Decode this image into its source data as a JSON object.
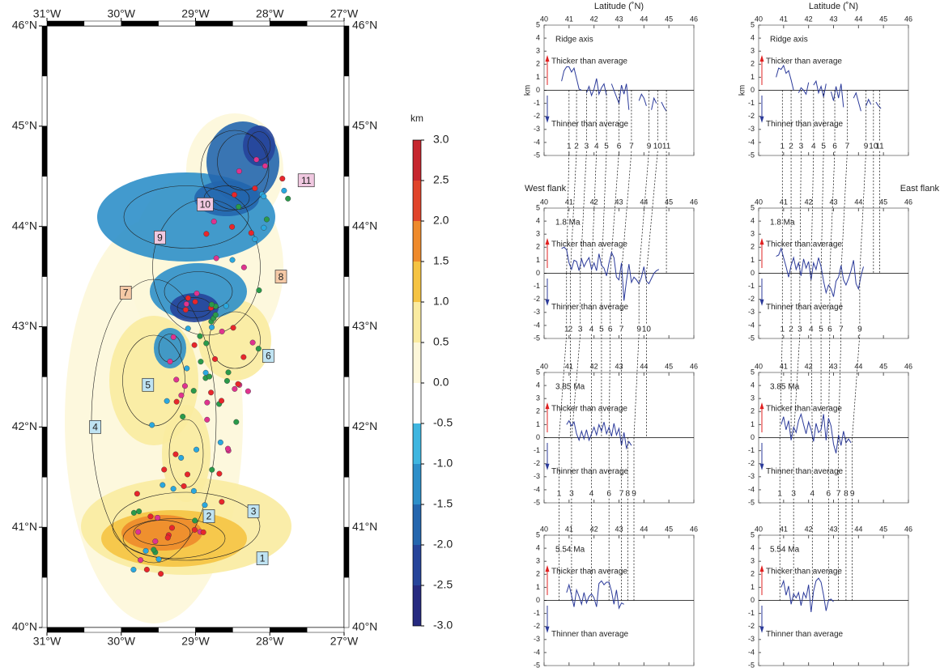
{
  "map": {
    "xlim": [
      -31,
      -27
    ],
    "ylim": [
      40,
      46
    ],
    "lon_ticks": [
      {
        "value": -31,
        "label": "31°W"
      },
      {
        "value": -30,
        "label": "30°W"
      },
      {
        "value": -29,
        "label": "29°W"
      },
      {
        "value": -28,
        "label": "28°W"
      },
      {
        "value": -27,
        "label": "27°W"
      }
    ],
    "lat_ticks": [
      {
        "value": 40,
        "label": "40°N"
      },
      {
        "value": 41,
        "label": "41°N"
      },
      {
        "value": 42,
        "label": "42°N"
      },
      {
        "value": 43,
        "label": "43°N"
      },
      {
        "value": 44,
        "label": "44°N"
      },
      {
        "value": 45,
        "label": "45°N"
      },
      {
        "value": 46,
        "label": "46°N"
      }
    ],
    "segments": [
      {
        "label": "1",
        "lon": -28.1,
        "lat": 40.69,
        "color": "#bfe3f2"
      },
      {
        "label": "2",
        "lon": -28.82,
        "lat": 41.11,
        "color": "#bfe3f2"
      },
      {
        "label": "3",
        "lon": -28.22,
        "lat": 41.16,
        "color": "#bfe3f2"
      },
      {
        "label": "4",
        "lon": -30.35,
        "lat": 42.0,
        "color": "#bfe3f2"
      },
      {
        "label": "5",
        "lon": -29.64,
        "lat": 42.42,
        "color": "#bfe3f2"
      },
      {
        "label": "6",
        "lon": -28.02,
        "lat": 42.71,
        "color": "#bfe3f2"
      },
      {
        "label": "7",
        "lon": -29.94,
        "lat": 43.34,
        "color": "#f5c9a6"
      },
      {
        "label": "8",
        "lon": -27.85,
        "lat": 43.5,
        "color": "#f5c9a6"
      },
      {
        "label": "9",
        "lon": -29.48,
        "lat": 43.89,
        "color": "#f0c8e0"
      },
      {
        "label": "10",
        "lon": -28.87,
        "lat": 44.22,
        "color": "#f0c8e0"
      },
      {
        "label": "11",
        "lon": -27.51,
        "lat": 44.46,
        "color": "#f0c8e0"
      }
    ]
  },
  "colorbar": {
    "title": "km",
    "lim": [
      -3,
      3
    ],
    "colors": [
      "#c6262e",
      "#e0442a",
      "#ee8a2b",
      "#f5c342",
      "#faeba0",
      "#fdf7d9",
      "#ffffff",
      "#3fb6e0",
      "#2d8fc9",
      "#2466ae",
      "#26449a",
      "#262a80"
    ],
    "ticks": [
      {
        "value": 3,
        "label": "3.0"
      },
      {
        "value": 2.5,
        "label": "2.5"
      },
      {
        "value": 2,
        "label": "2.0"
      },
      {
        "value": 1.5,
        "label": "1.5"
      },
      {
        "value": 1,
        "label": "1.0"
      },
      {
        "value": 0.5,
        "label": "0.5"
      },
      {
        "value": 0,
        "label": "0.0"
      },
      {
        "value": -0.5,
        "label": "-0.5"
      },
      {
        "value": -1,
        "label": "-1.0"
      },
      {
        "value": -1.5,
        "label": "-1.5"
      },
      {
        "value": -2,
        "label": "-2.0"
      },
      {
        "value": -2.5,
        "label": "-2.5"
      },
      {
        "value": -3,
        "label": "-3.0"
      }
    ]
  },
  "profiles": {
    "x_title": "Latitude (˚N)",
    "y_title": "km",
    "west": "West flank",
    "east": "East flank",
    "thicker": "Thicker than average",
    "thinner": "Thinner than average",
    "color": "#2b3a9a",
    "xlim": [
      40,
      46
    ],
    "ylim": [
      -5,
      5
    ],
    "xticks": [
      40,
      41,
      42,
      43,
      44,
      45,
      46
    ],
    "yticks": [
      5,
      4,
      3,
      2,
      1,
      0,
      -1,
      -2,
      -3,
      -4,
      -5
    ],
    "x": [
      40.7,
      40.8,
      40.9,
      41.0,
      41.1,
      41.2,
      41.3,
      41.4,
      41.5,
      41.6,
      41.7,
      41.8,
      41.9,
      42.0,
      42.1,
      42.2,
      42.3,
      42.4,
      42.5,
      42.6,
      42.7,
      42.8,
      42.9,
      43.0,
      43.1,
      43.2,
      43.3,
      43.4,
      43.5,
      43.6,
      43.7,
      43.8,
      43.9,
      44.0,
      44.1,
      44.2,
      44.3,
      44.4,
      44.5,
      44.6,
      44.7,
      44.8,
      44.9
    ],
    "panels": [
      {
        "label": "Ridge axis",
        "values": [
          0.7,
          1.5,
          1.8,
          1.8,
          1.4,
          1.7,
          0.9,
          0.1,
          0.0,
          null,
          -0.2,
          0.3,
          -0.4,
          0.1,
          0.9,
          -0.3,
          0.2,
          0.5,
          -0.4,
          null,
          0.5,
          0.0,
          -0.5,
          -1.0,
          0.4,
          -0.3,
          0.5,
          -1.5,
          null,
          null,
          null,
          -0.8,
          -0.3,
          -0.6,
          -1.2,
          null,
          -1.5,
          -0.6,
          -1.0,
          null,
          -0.9,
          -1.3,
          -1.6
        ],
        "segments": [
          {
            "label": "1",
            "lat": 41.0
          },
          {
            "label": "2",
            "lat": 41.3
          },
          {
            "label": "3",
            "lat": 41.7
          },
          {
            "label": "4",
            "lat": 42.1
          },
          {
            "label": "5",
            "lat": 42.5
          },
          {
            "label": "6",
            "lat": 43.0
          },
          {
            "label": "7",
            "lat": 43.5
          },
          {
            "label": "9",
            "lat": 44.2
          },
          {
            "label": "10",
            "lat": 44.55
          },
          {
            "label": "11",
            "lat": 44.9
          }
        ]
      },
      {
        "label": "Ridge axis",
        "values": [
          1.0,
          1.7,
          1.6,
          1.9,
          1.3,
          1.5,
          0.8,
          0.0,
          null,
          -0.2,
          0.2,
          0.0,
          -0.3,
          0.6,
          null,
          0.4,
          0.7,
          -0.2,
          0.3,
          -0.5,
          0.5,
          null,
          -0.1,
          -0.8,
          0.3,
          -0.6,
          0.5,
          -1.3,
          null,
          null,
          null,
          -0.6,
          -0.2,
          -0.9,
          -1.6,
          null,
          -1.2,
          -0.7,
          -1.1,
          null,
          -0.9,
          -1.2,
          -1.4
        ],
        "segments": [
          {
            "label": "1",
            "lat": 40.95
          },
          {
            "label": "2",
            "lat": 41.3
          },
          {
            "label": "3",
            "lat": 41.7
          },
          {
            "label": "4",
            "lat": 42.2
          },
          {
            "label": "5",
            "lat": 42.6
          },
          {
            "label": "6",
            "lat": 43.05
          },
          {
            "label": "7",
            "lat": 43.55
          },
          {
            "label": "9",
            "lat": 44.3
          },
          {
            "label": "10",
            "lat": 44.6
          },
          {
            "label": "11",
            "lat": 44.85
          }
        ]
      },
      {
        "label": "1.8 Ma",
        "values": [
          1.9,
          2.0,
          1.8,
          0.8,
          0.3,
          1.0,
          0.9,
          0.2,
          1.1,
          0.5,
          0.9,
          1.2,
          0.3,
          0.8,
          0.2,
          1.5,
          0.6,
          0.4,
          -0.2,
          0.8,
          1.6,
          1.2,
          -0.3,
          -0.5,
          0.8,
          -2.1,
          -0.6,
          0.7,
          -0.7,
          -0.3,
          -0.5,
          -0.8,
          -0.3,
          0.5,
          -0.6,
          -0.8,
          -0.4,
          0.0,
          0.2,
          0.3,
          null,
          null,
          null
        ],
        "segments": [
          {
            "label": "1",
            "lat": 40.9
          },
          {
            "label": "2",
            "lat": 41.05
          },
          {
            "label": "3",
            "lat": 41.45
          },
          {
            "label": "4",
            "lat": 41.9
          },
          {
            "label": "5",
            "lat": 42.3
          },
          {
            "label": "6",
            "lat": 42.65
          },
          {
            "label": "7",
            "lat": 43.1
          },
          {
            "label": "9",
            "lat": 43.8
          },
          {
            "label": "10",
            "lat": 44.1
          }
        ]
      },
      {
        "label": "1.8 Ma",
        "values": [
          1.3,
          1.4,
          1.9,
          1.2,
          0.5,
          -0.3,
          0.6,
          1.2,
          0.3,
          0.8,
          -0.2,
          1.1,
          0.4,
          0.9,
          -0.5,
          0.8,
          0.3,
          1.2,
          0.5,
          -0.6,
          -1.5,
          -0.9,
          -1.2,
          -1.8,
          -0.6,
          -0.3,
          0.6,
          -0.5,
          -0.9,
          -0.4,
          0.2,
          1.0,
          -0.8,
          -1.2,
          -0.2,
          0.5,
          null,
          null,
          null,
          null,
          null,
          null,
          null
        ],
        "segments": [
          {
            "label": "1",
            "lat": 40.95
          },
          {
            "label": "2",
            "lat": 41.3
          },
          {
            "label": "3",
            "lat": 41.65
          },
          {
            "label": "4",
            "lat": 42.1
          },
          {
            "label": "5",
            "lat": 42.5
          },
          {
            "label": "6",
            "lat": 42.85
          },
          {
            "label": "7",
            "lat": 43.3
          },
          {
            "label": "9",
            "lat": 44.05
          }
        ]
      },
      {
        "label": "3.85 Ma",
        "values": [
          null,
          null,
          1.0,
          1.3,
          0.9,
          1.2,
          0.3,
          -0.2,
          0.5,
          -0.1,
          0.6,
          -0.2,
          0.3,
          0.8,
          0.2,
          1.0,
          0.5,
          1.2,
          0.3,
          0.8,
          0.1,
          1.1,
          0.2,
          0.7,
          -0.6,
          0.4,
          -0.8,
          -0.3,
          -0.6,
          null,
          null,
          null,
          null,
          null,
          null,
          null,
          null,
          null,
          null,
          null,
          null,
          null,
          null
        ],
        "segments": [
          {
            "label": "1",
            "lat": 40.6
          },
          {
            "label": "3",
            "lat": 41.1
          },
          {
            "label": "4",
            "lat": 41.9
          },
          {
            "label": "6",
            "lat": 42.6
          },
          {
            "label": "7",
            "lat": 43.1
          },
          {
            "label": "8",
            "lat": 43.35
          },
          {
            "label": "9",
            "lat": 43.6
          }
        ]
      },
      {
        "label": "3.85 Ma",
        "values": [
          null,
          null,
          1.0,
          1.6,
          0.6,
          1.3,
          -0.2,
          0.8,
          0.4,
          1.3,
          1.8,
          1.0,
          0.3,
          1.2,
          0.6,
          -0.3,
          1.1,
          0.4,
          0.6,
          1.8,
          -0.2,
          1.5,
          0.9,
          -0.5,
          -1.2,
          0.2,
          -0.6,
          0.5,
          -0.4,
          -0.1,
          -0.4,
          null,
          null,
          null,
          null,
          null,
          null,
          null,
          null,
          null,
          null,
          null,
          null
        ],
        "segments": [
          {
            "label": "1",
            "lat": 40.85
          },
          {
            "label": "3",
            "lat": 41.4
          },
          {
            "label": "4",
            "lat": 42.15
          },
          {
            "label": "6",
            "lat": 42.8
          },
          {
            "label": "7",
            "lat": 43.2
          },
          {
            "label": "8",
            "lat": 43.5
          },
          {
            "label": "9",
            "lat": 43.75
          }
        ]
      },
      {
        "label": "5.54 Ma",
        "values": [
          null,
          null,
          0.6,
          1.2,
          0.4,
          -0.5,
          0.8,
          0.3,
          -0.3,
          0.6,
          -0.2,
          0.3,
          0.5,
          0.2,
          -0.5,
          1.3,
          1.5,
          1.2,
          1.4,
          1.4,
          0.7,
          -0.3,
          0.8,
          -0.6,
          -0.2,
          -0.3,
          null,
          null,
          null,
          null,
          null,
          null,
          null,
          null,
          null,
          null,
          null,
          null,
          null,
          null,
          null,
          null,
          null
        ],
        "segments": []
      },
      {
        "label": "5.54 Ma",
        "values": [
          null,
          null,
          1.0,
          1.5,
          0.4,
          1.1,
          -0.3,
          0.5,
          0.2,
          0.6,
          -0.4,
          0.6,
          0.2,
          1.2,
          -0.9,
          0.7,
          1.5,
          1.7,
          1.4,
          0.4,
          -0.8,
          0.0,
          0.1,
          -0.1,
          null,
          null,
          null,
          null,
          null,
          null,
          null,
          null,
          null,
          null,
          null,
          null,
          null,
          null,
          null,
          null,
          null,
          null,
          null
        ],
        "segments": []
      }
    ]
  }
}
